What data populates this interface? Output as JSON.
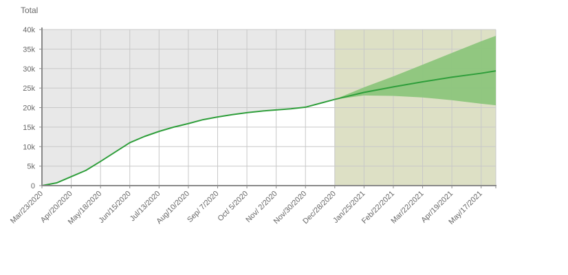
{
  "chart_data": {
    "type": "line",
    "title": "",
    "ylabel": "Total",
    "xlabel": "",
    "ylim": [
      0,
      40000
    ],
    "y_ticks": [
      0,
      5000,
      10000,
      15000,
      20000,
      25000,
      30000,
      35000,
      40000
    ],
    "y_tick_labels": [
      "0",
      "5k",
      "10k",
      "15k",
      "20k",
      "25k",
      "30k",
      "35k",
      "40k"
    ],
    "x_ticks": [
      "2020-03-23",
      "2020-04-20",
      "2020-05-18",
      "2020-06-15",
      "2020-07-13",
      "2020-08-10",
      "2020-09-07",
      "2020-10-05",
      "2020-11-02",
      "2020-11-30",
      "2020-12-28",
      "2021-01-25",
      "2021-02-22",
      "2021-03-22",
      "2021-04-19",
      "2021-05-17"
    ],
    "x_tick_labels": [
      "Mar/23/2020",
      "Apr/20/2020",
      "May/18/2020",
      "Jun/15/2020",
      "Jul/13/2020",
      "Aug/10/2020",
      "Sep/ 7/2020",
      "Oct/ 5/2020",
      "Nov/ 2/2020",
      "Nov/30/2020",
      "Dec/28/2020",
      "Jan/25/2021",
      "Feb/22/2021",
      "Mar/22/2021",
      "Apr/19/2021",
      "May/17/2021"
    ],
    "x_range": [
      "2020-03-23",
      "2021-05-31"
    ],
    "forecast_start": "2020-12-28",
    "grid": true,
    "colors": {
      "observed_region": "#e8e8e8",
      "forecast_region": "#dde0c5",
      "line": "#2e9e3a",
      "band": "#8cc57c",
      "grid": "#c8c8c8",
      "axis": "#888888"
    },
    "series": [
      {
        "kind": "observed",
        "points": [
          [
            "2020-03-23",
            0
          ],
          [
            "2020-04-06",
            700
          ],
          [
            "2020-04-20",
            2300
          ],
          [
            "2020-05-04",
            3900
          ],
          [
            "2020-05-18",
            6200
          ],
          [
            "2020-06-01",
            8600
          ],
          [
            "2020-06-15",
            11000
          ],
          [
            "2020-06-29",
            12600
          ],
          [
            "2020-07-13",
            13900
          ],
          [
            "2020-07-27",
            15000
          ],
          [
            "2020-08-10",
            15900
          ],
          [
            "2020-08-24",
            16900
          ],
          [
            "2020-09-07",
            17600
          ],
          [
            "2020-09-21",
            18200
          ],
          [
            "2020-10-05",
            18700
          ],
          [
            "2020-10-19",
            19100
          ],
          [
            "2020-11-02",
            19400
          ],
          [
            "2020-11-16",
            19700
          ],
          [
            "2020-11-30",
            20100
          ],
          [
            "2020-12-14",
            21100
          ],
          [
            "2020-12-28",
            22100
          ]
        ]
      },
      {
        "kind": "forecast",
        "points": [
          [
            "2020-12-28",
            22100
          ],
          [
            "2021-01-25",
            23900
          ],
          [
            "2021-02-22",
            25300
          ],
          [
            "2021-03-22",
            26600
          ],
          [
            "2021-04-19",
            27800
          ],
          [
            "2021-05-17",
            28800
          ],
          [
            "2021-05-31",
            29400
          ]
        ]
      },
      {
        "kind": "forecast_band",
        "points": [
          [
            "2020-12-28",
            22100,
            22100
          ],
          [
            "2021-01-25",
            23100,
            25200
          ],
          [
            "2021-02-22",
            23000,
            28000
          ],
          [
            "2021-03-22",
            22600,
            31000
          ],
          [
            "2021-04-19",
            21900,
            34000
          ],
          [
            "2021-05-17",
            21000,
            37000
          ],
          [
            "2021-05-31",
            20600,
            38400
          ]
        ]
      }
    ]
  }
}
